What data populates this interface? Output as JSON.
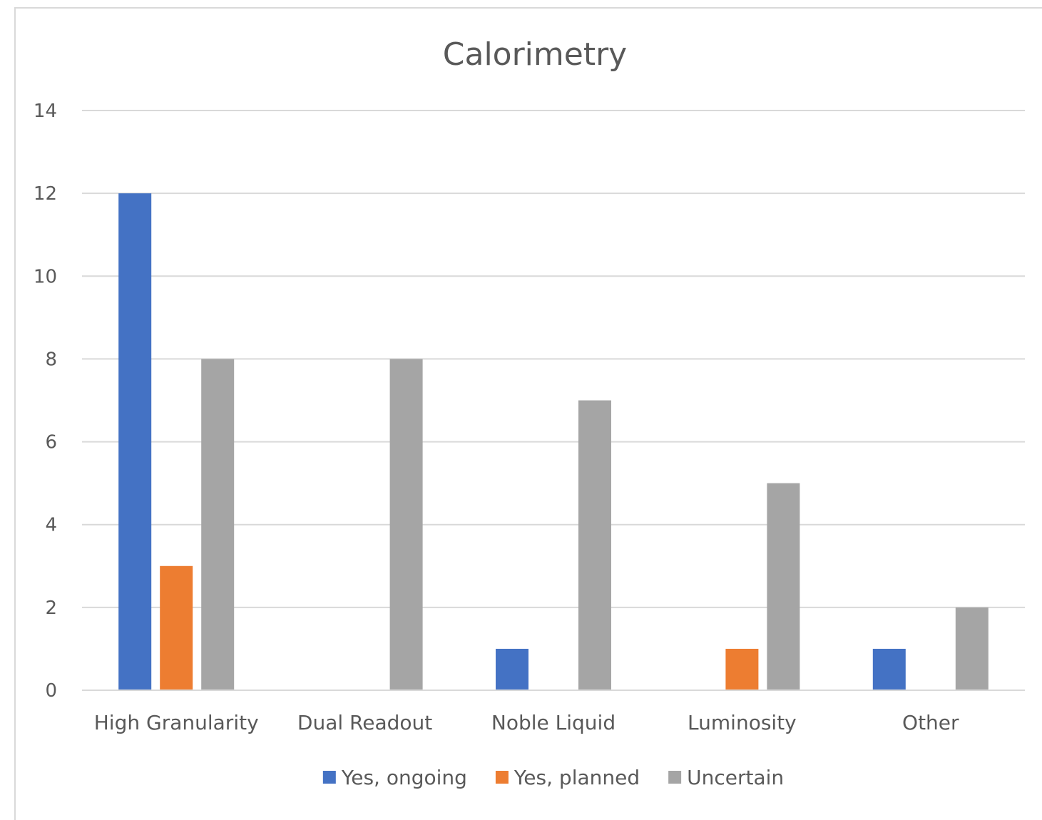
{
  "chart_data": {
    "type": "bar",
    "title": "Calorimetry",
    "xlabel": "",
    "ylabel": "",
    "categories": [
      "High Granularity",
      "Dual Readout",
      "Noble Liquid",
      "Luminosity",
      "Other"
    ],
    "series": [
      {
        "name": "Yes, ongoing",
        "color": "#4472c4",
        "values": [
          12,
          0,
          1,
          0,
          1
        ]
      },
      {
        "name": "Yes, planned",
        "color": "#ed7d31",
        "values": [
          3,
          0,
          0,
          1,
          0
        ]
      },
      {
        "name": "Uncertain",
        "color": "#a5a5a5",
        "values": [
          8,
          8,
          7,
          5,
          2
        ]
      }
    ],
    "ylim": [
      0,
      14
    ],
    "yticks": [
      "0",
      "2",
      "4",
      "6",
      "8",
      "10",
      "12",
      "14"
    ],
    "grid": true,
    "legend": "bottom"
  }
}
